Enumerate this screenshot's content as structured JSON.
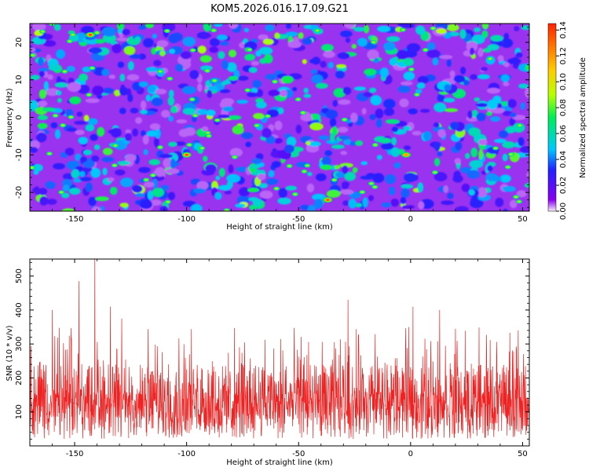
{
  "title": "KOM5.2026.016.17.09.G21",
  "chart_data": [
    {
      "type": "heatmap",
      "xlabel": "Height of straight line (km)",
      "ylabel": "Frequency (Hz)",
      "xlim": [
        -170,
        53
      ],
      "ylim": [
        -25,
        25
      ],
      "xticks": [
        -150,
        -100,
        -50,
        0,
        50
      ],
      "yticks": [
        -20,
        -10,
        0,
        10,
        20
      ],
      "colorbar": {
        "label": "Normalized spectral amplitude",
        "range": [
          0,
          0.145
        ],
        "ticks": [
          "0.00",
          "0.02",
          "0.04",
          "0.06",
          "0.08",
          "0.10",
          "0.12",
          "0.14"
        ],
        "colormap": [
          "#f8eefc",
          "#8a00f0",
          "#2222ff",
          "#00c8ff",
          "#00ee55",
          "#b8ff00",
          "#ffcc00",
          "#ff2200"
        ]
      },
      "notable_peaks": [
        {
          "x": -143,
          "y": 22,
          "value": 0.14
        },
        {
          "x": -100,
          "y": -10,
          "value": 0.14
        },
        {
          "x": -37,
          "y": -22,
          "value": 0.14
        },
        {
          "x": -2,
          "y": -10,
          "value": 0.12
        }
      ]
    },
    {
      "type": "line",
      "xlabel": "Height of straight line (km)",
      "ylabel": "SNR (10 * v/v)",
      "xlim": [
        -170,
        53
      ],
      "ylim": [
        0,
        550
      ],
      "xticks": [
        -150,
        -100,
        -50,
        0,
        50
      ],
      "yticks": [
        100,
        200,
        300,
        400,
        500
      ],
      "series_color": "#ee2222",
      "baseline_mean": 140,
      "notable_peaks": [
        {
          "x": -141,
          "y": 550
        },
        {
          "x": -148,
          "y": 485
        },
        {
          "x": -134,
          "y": 410
        },
        {
          "x": -129,
          "y": 375
        },
        {
          "x": -160,
          "y": 400
        },
        {
          "x": -28,
          "y": 430
        },
        {
          "x": 1,
          "y": 410
        },
        {
          "x": 13,
          "y": 400
        },
        {
          "x": 48,
          "y": 340
        }
      ]
    }
  ]
}
